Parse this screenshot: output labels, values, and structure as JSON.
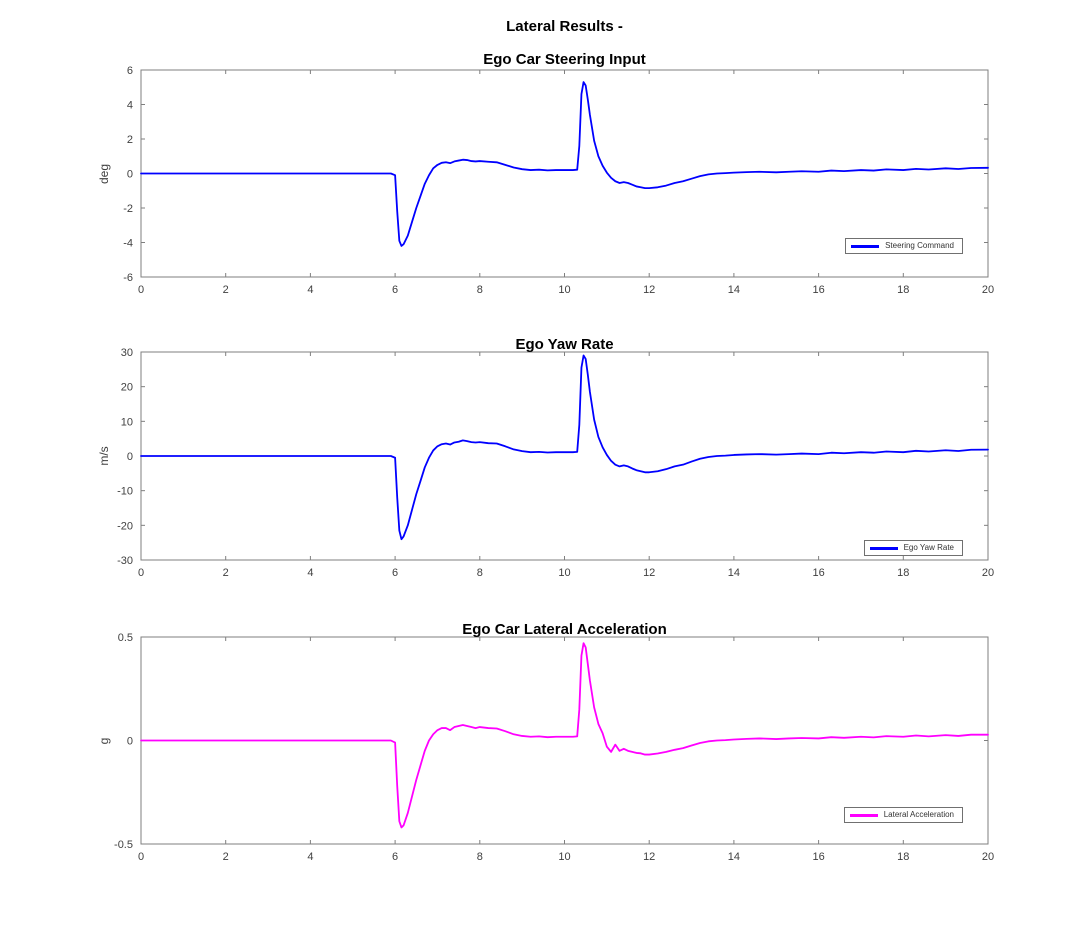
{
  "figure": {
    "suptitle": "Lateral Results -",
    "colors": {
      "axis": "#7f7f7f",
      "tick_text": "#404040",
      "steering_line": "#0000ff",
      "yaw_line": "#0000ff",
      "accel_line": "#ff00ff"
    }
  },
  "chart_data": [
    {
      "type": "line",
      "title": "Ego Car Steering Input",
      "xlabel": "",
      "ylabel": "deg",
      "xlim": [
        0,
        20
      ],
      "ylim": [
        -6,
        6
      ],
      "xticks": [
        0,
        2,
        4,
        6,
        8,
        10,
        12,
        14,
        16,
        18,
        20
      ],
      "yticks": [
        -6,
        -4,
        -2,
        0,
        2,
        4,
        6
      ],
      "grid": false,
      "legend": {
        "label": "Steering Command",
        "position": "lower-right"
      },
      "color": "#0000ff",
      "x": [
        0,
        0.5,
        1,
        1.5,
        2,
        2.5,
        3,
        3.5,
        4,
        4.5,
        5,
        5.5,
        5.9,
        6.0,
        6.05,
        6.1,
        6.15,
        6.2,
        6.3,
        6.4,
        6.5,
        6.6,
        6.7,
        6.8,
        6.9,
        7.0,
        7.1,
        7.2,
        7.3,
        7.4,
        7.5,
        7.6,
        7.7,
        7.8,
        7.9,
        8.0,
        8.2,
        8.4,
        8.6,
        8.8,
        9.0,
        9.2,
        9.4,
        9.6,
        9.8,
        10.0,
        10.2,
        10.3,
        10.35,
        10.4,
        10.45,
        10.5,
        10.55,
        10.6,
        10.7,
        10.8,
        10.9,
        11.0,
        11.1,
        11.2,
        11.3,
        11.4,
        11.5,
        11.6,
        11.7,
        11.8,
        11.9,
        12.0,
        12.2,
        12.4,
        12.6,
        12.8,
        13.0,
        13.2,
        13.4,
        13.6,
        13.8,
        14.0,
        14.3,
        14.6,
        15.0,
        15.3,
        15.6,
        16.0,
        16.3,
        16.6,
        17.0,
        17.3,
        17.6,
        18.0,
        18.3,
        18.6,
        19.0,
        19.3,
        19.6,
        20.0
      ],
      "y": [
        0,
        0,
        0,
        0,
        0,
        0,
        0,
        0,
        0,
        0,
        0,
        0,
        0,
        -0.1,
        -2.2,
        -3.9,
        -4.2,
        -4.1,
        -3.6,
        -2.8,
        -2.0,
        -1.3,
        -0.6,
        -0.1,
        0.3,
        0.5,
        0.62,
        0.65,
        0.6,
        0.7,
        0.75,
        0.8,
        0.78,
        0.72,
        0.7,
        0.72,
        0.68,
        0.65,
        0.5,
        0.35,
        0.25,
        0.2,
        0.22,
        0.18,
        0.2,
        0.2,
        0.2,
        0.22,
        1.6,
        4.6,
        5.3,
        5.1,
        4.3,
        3.4,
        1.9,
        1.0,
        0.45,
        0.05,
        -0.25,
        -0.45,
        -0.55,
        -0.5,
        -0.55,
        -0.65,
        -0.75,
        -0.8,
        -0.85,
        -0.85,
        -0.8,
        -0.7,
        -0.55,
        -0.45,
        -0.3,
        -0.15,
        -0.05,
        0,
        0.02,
        0.05,
        0.08,
        0.1,
        0.07,
        0.1,
        0.13,
        0.1,
        0.17,
        0.14,
        0.2,
        0.17,
        0.24,
        0.2,
        0.27,
        0.23,
        0.3,
        0.26,
        0.32,
        0.33
      ]
    },
    {
      "type": "line",
      "title": "Ego Yaw Rate",
      "xlabel": "",
      "ylabel": "m/s",
      "xlim": [
        0,
        20
      ],
      "ylim": [
        -30,
        30
      ],
      "xticks": [
        0,
        2,
        4,
        6,
        8,
        10,
        12,
        14,
        16,
        18,
        20
      ],
      "yticks": [
        -30,
        -20,
        -10,
        0,
        10,
        20,
        30
      ],
      "grid": false,
      "legend": {
        "label": "Ego Yaw Rate",
        "position": "lower-right"
      },
      "color": "#0000ff",
      "x": [
        0,
        0.5,
        1,
        1.5,
        2,
        2.5,
        3,
        3.5,
        4,
        4.5,
        5,
        5.5,
        5.9,
        6.0,
        6.05,
        6.1,
        6.15,
        6.2,
        6.3,
        6.4,
        6.5,
        6.6,
        6.7,
        6.8,
        6.9,
        7.0,
        7.1,
        7.2,
        7.3,
        7.4,
        7.5,
        7.6,
        7.7,
        7.8,
        7.9,
        8.0,
        8.2,
        8.4,
        8.6,
        8.8,
        9.0,
        9.2,
        9.4,
        9.6,
        9.8,
        10.0,
        10.2,
        10.3,
        10.35,
        10.4,
        10.45,
        10.5,
        10.55,
        10.6,
        10.7,
        10.8,
        10.9,
        11.0,
        11.1,
        11.2,
        11.3,
        11.4,
        11.5,
        11.6,
        11.7,
        11.8,
        11.9,
        12.0,
        12.2,
        12.4,
        12.6,
        12.8,
        13.0,
        13.2,
        13.4,
        13.6,
        13.8,
        14.0,
        14.3,
        14.6,
        15.0,
        15.3,
        15.6,
        16.0,
        16.3,
        16.6,
        17.0,
        17.3,
        17.6,
        18.0,
        18.3,
        18.6,
        19.0,
        19.3,
        19.6,
        20.0
      ],
      "y": [
        0,
        0,
        0,
        0,
        0,
        0,
        0,
        0,
        0,
        0,
        0,
        0,
        0,
        -0.5,
        -12,
        -21.5,
        -24,
        -23.2,
        -20,
        -15.5,
        -11,
        -7.2,
        -3.3,
        -0.5,
        1.6,
        2.8,
        3.4,
        3.6,
        3.3,
        3.9,
        4.1,
        4.5,
        4.3,
        4.0,
        3.9,
        4.0,
        3.7,
        3.6,
        2.8,
        1.9,
        1.4,
        1.1,
        1.2,
        1.0,
        1.1,
        1.1,
        1.1,
        1.2,
        9,
        25.5,
        29,
        28,
        23.5,
        18.5,
        10.5,
        5.5,
        2.5,
        0.3,
        -1.4,
        -2.5,
        -3.0,
        -2.7,
        -3.0,
        -3.6,
        -4.1,
        -4.4,
        -4.7,
        -4.7,
        -4.4,
        -3.8,
        -3.0,
        -2.5,
        -1.6,
        -0.8,
        -0.3,
        0,
        0.1,
        0.3,
        0.45,
        0.55,
        0.4,
        0.55,
        0.7,
        0.55,
        0.95,
        0.8,
        1.1,
        0.95,
        1.3,
        1.1,
        1.5,
        1.3,
        1.65,
        1.45,
        1.8,
        1.85
      ]
    },
    {
      "type": "line",
      "title": "Ego Car Lateral Acceleration",
      "xlabel": "",
      "ylabel": "g",
      "xlim": [
        0,
        20
      ],
      "ylim": [
        -0.5,
        0.5
      ],
      "xticks": [
        0,
        2,
        4,
        6,
        8,
        10,
        12,
        14,
        16,
        18,
        20
      ],
      "yticks": [
        -0.5,
        0,
        0.5
      ],
      "grid": false,
      "legend": {
        "label": "Lateral Acceleration",
        "position": "lower-right"
      },
      "color": "#ff00ff",
      "x": [
        0,
        0.5,
        1,
        1.5,
        2,
        2.5,
        3,
        3.5,
        4,
        4.5,
        5,
        5.5,
        5.9,
        6.0,
        6.05,
        6.1,
        6.15,
        6.2,
        6.3,
        6.4,
        6.5,
        6.6,
        6.7,
        6.8,
        6.9,
        7.0,
        7.1,
        7.2,
        7.3,
        7.4,
        7.5,
        7.6,
        7.7,
        7.8,
        7.9,
        8.0,
        8.2,
        8.4,
        8.6,
        8.8,
        9.0,
        9.2,
        9.4,
        9.6,
        9.8,
        10.0,
        10.2,
        10.3,
        10.35,
        10.4,
        10.45,
        10.5,
        10.55,
        10.6,
        10.7,
        10.8,
        10.9,
        11.0,
        11.1,
        11.2,
        11.3,
        11.4,
        11.5,
        11.6,
        11.7,
        11.8,
        11.9,
        12.0,
        12.2,
        12.4,
        12.6,
        12.8,
        13.0,
        13.2,
        13.4,
        13.6,
        13.8,
        14.0,
        14.3,
        14.6,
        15.0,
        15.3,
        15.6,
        16.0,
        16.3,
        16.6,
        17.0,
        17.3,
        17.6,
        18.0,
        18.3,
        18.6,
        19.0,
        19.3,
        19.6,
        20.0
      ],
      "y": [
        0,
        0,
        0,
        0,
        0,
        0,
        0,
        0,
        0,
        0,
        0,
        0,
        0,
        -0.01,
        -0.22,
        -0.39,
        -0.42,
        -0.41,
        -0.35,
        -0.27,
        -0.19,
        -0.12,
        -0.05,
        0.0,
        0.03,
        0.05,
        0.06,
        0.06,
        0.05,
        0.065,
        0.07,
        0.075,
        0.07,
        0.065,
        0.06,
        0.065,
        0.06,
        0.058,
        0.045,
        0.03,
        0.022,
        0.018,
        0.02,
        0.016,
        0.018,
        0.018,
        0.018,
        0.02,
        0.15,
        0.41,
        0.47,
        0.45,
        0.37,
        0.29,
        0.16,
        0.08,
        0.035,
        -0.03,
        -0.055,
        -0.02,
        -0.05,
        -0.04,
        -0.05,
        -0.055,
        -0.06,
        -0.062,
        -0.068,
        -0.068,
        -0.063,
        -0.055,
        -0.045,
        -0.037,
        -0.024,
        -0.012,
        -0.004,
        0,
        0.002,
        0.005,
        0.008,
        0.01,
        0.007,
        0.01,
        0.012,
        0.01,
        0.016,
        0.013,
        0.018,
        0.015,
        0.021,
        0.018,
        0.024,
        0.02,
        0.026,
        0.022,
        0.028,
        0.028
      ]
    }
  ]
}
